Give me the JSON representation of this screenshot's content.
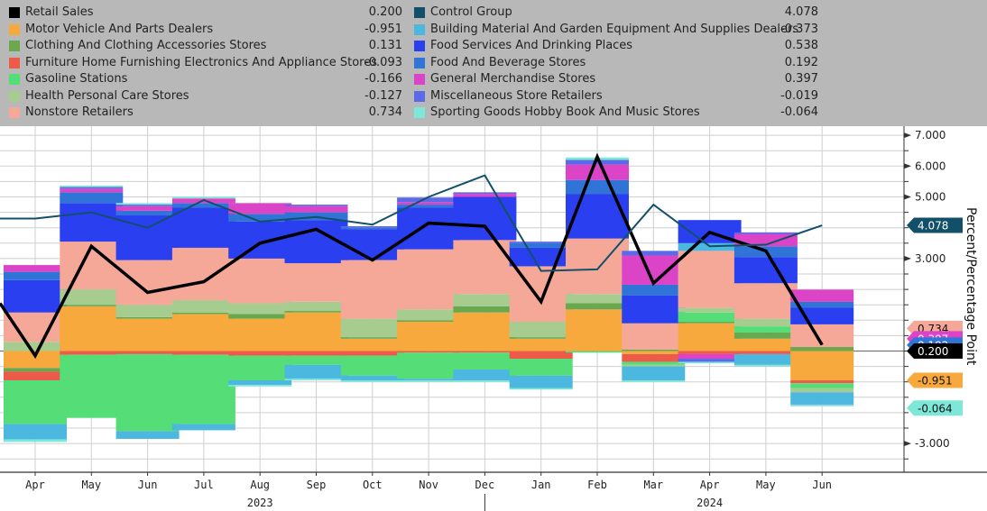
{
  "legend": {
    "left": [
      {
        "name": "Retail Sales",
        "value": "0.200",
        "color": "#000000"
      },
      {
        "name": "Motor Vehicle And Parts Dealers",
        "value": "-0.951",
        "color": "#f8a93e"
      },
      {
        "name": "Clothing And Clothing Accessories Stores",
        "value": "0.131",
        "color": "#6aa84f"
      },
      {
        "name": "Furniture Home Furnishing Electronics And Appliance Stores",
        "value": "-0.093",
        "color": "#ee5a4a"
      },
      {
        "name": "Gasoline Stations",
        "value": "-0.166",
        "color": "#55dd77"
      },
      {
        "name": "Health Personal Care Stores",
        "value": "-0.127",
        "color": "#a6cc90"
      },
      {
        "name": "Nonstore Retailers",
        "value": "0.734",
        "color": "#f6a898"
      }
    ],
    "right": [
      {
        "name": "Control Group",
        "value": "4.078",
        "color": "#12506a"
      },
      {
        "name": "Building Material And Garden Equipment And Supplies Dealers",
        "value": "-0.373",
        "color": "#4cb8e0"
      },
      {
        "name": "Food Services And Drinking Places",
        "value": "0.538",
        "color": "#2a3ff0"
      },
      {
        "name": "Food And Beverage Stores",
        "value": "0.192",
        "color": "#2f74d6"
      },
      {
        "name": "General Merchandise Stores",
        "value": "0.397",
        "color": "#dc44c8"
      },
      {
        "name": "Miscellaneous Store Retailers",
        "value": "-0.019",
        "color": "#5a6ae8"
      },
      {
        "name": "Sporting Goods Hobby Book And Music Stores",
        "value": "-0.064",
        "color": "#7ee8d8"
      }
    ]
  },
  "chart_data": {
    "type": "bar",
    "subtype": "stacked-bar-with-lines",
    "title": "",
    "xlabel": "",
    "ylabel": "Percent/Percentage Point",
    "ylim": [
      -3.9,
      7.2
    ],
    "yticks": [
      7,
      6,
      5,
      3,
      -3
    ],
    "ytick_labels": [
      "7.000",
      "6.000",
      "5.000",
      "3.000",
      "-3.000"
    ],
    "grid": true,
    "legend_position": "top",
    "categories": [
      "Apr",
      "May",
      "Jun",
      "Jul",
      "Aug",
      "Sep",
      "Oct",
      "Nov",
      "Dec",
      "Jan",
      "Feb",
      "Mar",
      "Apr",
      "May",
      "Jun"
    ],
    "year_labels": [
      {
        "label": "2023",
        "after_index": 4
      },
      {
        "label": "2024",
        "after_index": 12
      }
    ],
    "year_divider_before_index": 8,
    "series": [
      {
        "name": "Motor Vehicle And Parts Dealers",
        "color": "#f8a93e",
        "values": [
          -0.55,
          1.45,
          1.05,
          1.2,
          1.05,
          1.25,
          0.4,
          0.95,
          1.25,
          0.4,
          1.35,
          -0.1,
          0.9,
          0.4,
          -0.951
        ]
      },
      {
        "name": "Clothing And Clothing Accessories Stores",
        "color": "#6aa84f",
        "values": [
          -0.12,
          0.05,
          0.05,
          0.05,
          0.15,
          0.05,
          0.05,
          0.05,
          0.2,
          0.05,
          0.2,
          0.05,
          0.05,
          0.2,
          0.131
        ]
      },
      {
        "name": "Furniture Home Furnishing Electronics And Appliance Stores",
        "color": "#ee5a4a",
        "values": [
          -0.28,
          -0.12,
          -0.1,
          -0.12,
          -0.15,
          -0.15,
          -0.15,
          -0.05,
          -0.05,
          -0.25,
          0.0,
          -0.25,
          -0.1,
          -0.1,
          -0.093
        ]
      },
      {
        "name": "Gasoline Stations",
        "color": "#55dd77",
        "values": [
          -1.42,
          -2.05,
          -2.5,
          -2.25,
          -0.8,
          -0.3,
          -0.65,
          -0.85,
          -0.55,
          -0.55,
          -0.05,
          -0.1,
          0.3,
          0.2,
          -0.166
        ]
      },
      {
        "name": "Health Personal Care Stores",
        "color": "#a6cc90",
        "values": [
          0.3,
          0.5,
          0.4,
          0.4,
          0.35,
          0.3,
          0.6,
          0.35,
          0.4,
          0.5,
          0.3,
          -0.05,
          0.15,
          0.25,
          -0.127
        ]
      },
      {
        "name": "Nonstore Retailers",
        "color": "#f6a898",
        "values": [
          0.95,
          1.55,
          1.45,
          1.7,
          1.45,
          1.25,
          1.9,
          1.95,
          1.75,
          1.8,
          1.8,
          0.85,
          1.85,
          1.15,
          0.734
        ]
      },
      {
        "name": "Building Material And Garden Equipment And Supplies Dealers",
        "color": "#4cb8e0",
        "values": [
          -0.5,
          0.0,
          -0.25,
          -0.2,
          -0.15,
          -0.45,
          -0.15,
          -0.05,
          -0.35,
          -0.4,
          0.0,
          -0.45,
          0.25,
          -0.35,
          -0.373
        ]
      },
      {
        "name": "Food Services And Drinking Places",
        "color": "#2a3ff0",
        "values": [
          1.05,
          1.25,
          1.45,
          1.3,
          1.2,
          1.4,
          1.0,
          1.35,
          1.4,
          0.6,
          1.45,
          0.9,
          0.75,
          0.85,
          0.538
        ]
      },
      {
        "name": "Food And Beverage Stores",
        "color": "#2f74d6",
        "values": [
          0.27,
          0.35,
          0.15,
          0.15,
          0.25,
          0.25,
          0.05,
          0.1,
          0.0,
          0.15,
          0.45,
          0.35,
          0.0,
          0.35,
          0.192
        ]
      },
      {
        "name": "General Merchandise Stores",
        "color": "#dc44c8",
        "values": [
          0.22,
          0.12,
          0.15,
          0.15,
          0.35,
          0.2,
          0.0,
          0.08,
          0.1,
          0.0,
          0.5,
          0.95,
          -0.15,
          0.4,
          0.397
        ]
      },
      {
        "name": "Miscellaneous Store Retailers",
        "color": "#5a6ae8",
        "values": [
          0.0,
          0.05,
          0.05,
          0.0,
          0.0,
          0.05,
          0.05,
          0.15,
          0.05,
          0.05,
          0.15,
          0.15,
          -0.1,
          0.05,
          -0.019
        ]
      },
      {
        "name": "Sporting Goods Hobby Book And Music Stores",
        "color": "#7ee8d8",
        "values": [
          -0.08,
          0.05,
          0.05,
          0.05,
          -0.05,
          -0.05,
          -0.05,
          -0.05,
          -0.05,
          -0.05,
          0.08,
          -0.05,
          -0.05,
          -0.05,
          -0.064
        ]
      }
    ],
    "lines": [
      {
        "name": "Retail Sales",
        "color": "#000000",
        "lead_in": 1.55,
        "values": [
          -0.15,
          3.4,
          1.9,
          2.25,
          3.5,
          3.95,
          2.95,
          4.15,
          4.05,
          1.6,
          6.3,
          2.2,
          3.85,
          3.25,
          0.2
        ]
      },
      {
        "name": "Control Group",
        "color": "#12506a",
        "lead_in": 4.3,
        "values": [
          4.3,
          4.5,
          4.0,
          4.9,
          4.2,
          4.35,
          4.1,
          5.0,
          5.7,
          2.6,
          2.65,
          4.75,
          3.4,
          3.45,
          4.078
        ]
      }
    ],
    "value_tags": [
      {
        "label": "4.078",
        "value": 4.078,
        "bg": "#12506a",
        "fg": "#ffffff"
      },
      {
        "label": "0.734",
        "value": 0.734,
        "bg": "#f6a898",
        "fg": "#111111"
      },
      {
        "label": "0.397",
        "value": 0.397,
        "bg": "#dc44c8",
        "fg": "#ffffff"
      },
      {
        "label": "0.192",
        "value": 0.192,
        "bg": "#2f74d6",
        "fg": "#ffffff"
      },
      {
        "label": "0.200",
        "value": 0.0,
        "bg": "#000000",
        "fg": "#ffffff"
      },
      {
        "label": "-0.951",
        "value": -0.951,
        "bg": "#f8a93e",
        "fg": "#111111"
      },
      {
        "label": "-0.064",
        "value": -1.85,
        "bg": "#7ee8d8",
        "fg": "#111111"
      }
    ]
  }
}
